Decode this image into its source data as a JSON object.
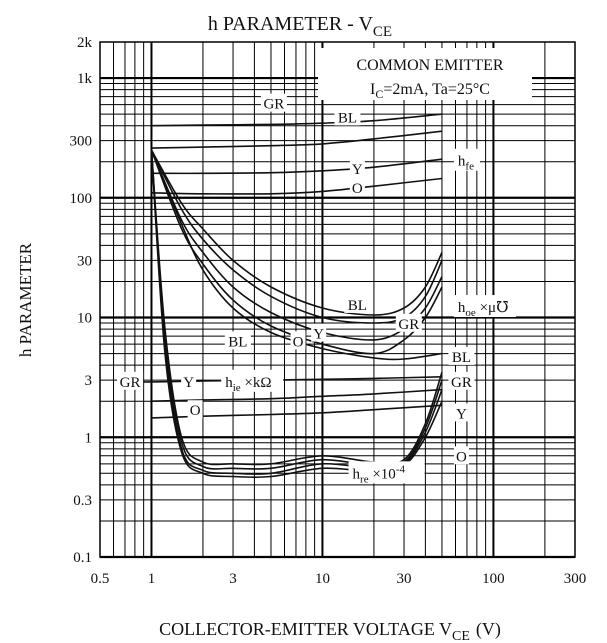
{
  "chart_data": {
    "type": "line",
    "title": "h PARAMETER - V",
    "title_sub": "CE",
    "xlabel": "COLLECTOR-EMITTER VOLTAGE V",
    "xlabel_sub": "CE",
    "xlabel_unit": "(V)",
    "ylabel": "h PARAMETER",
    "xscale": "log",
    "yscale": "log",
    "xlim": [
      0.5,
      300
    ],
    "ylim": [
      0.1,
      2000
    ],
    "grid": true,
    "xticks": [
      {
        "v": 0.5,
        "label": "0.5"
      },
      {
        "v": 1,
        "label": "1"
      },
      {
        "v": 3,
        "label": "3"
      },
      {
        "v": 10,
        "label": "10"
      },
      {
        "v": 30,
        "label": "30"
      },
      {
        "v": 100,
        "label": "100"
      },
      {
        "v": 300,
        "label": "300"
      }
    ],
    "yticks": [
      {
        "v": 2000,
        "label": "2k"
      },
      {
        "v": 1000,
        "label": "1k"
      },
      {
        "v": 300,
        "label": "300"
      },
      {
        "v": 100,
        "label": "100"
      },
      {
        "v": 30,
        "label": "30"
      },
      {
        "v": 10,
        "label": "10"
      },
      {
        "v": 3,
        "label": "3"
      },
      {
        "v": 1,
        "label": "1"
      },
      {
        "v": 0.3,
        "label": "0.3"
      },
      {
        "v": 0.1,
        "label": "0.1"
      }
    ],
    "conditions": {
      "line1": "COMMON EMITTER",
      "line2_pre": "I",
      "line2_sub": "C",
      "line2_post": "=2mA, Ta=25°C"
    },
    "series": [
      {
        "group": "hfe",
        "name": "GR",
        "x": [
          1,
          2,
          5,
          10,
          20,
          50
        ],
        "y": [
          400,
          405,
          410,
          420,
          440,
          500
        ]
      },
      {
        "group": "hfe",
        "name": "BL",
        "x": [
          1,
          2,
          5,
          10,
          20,
          50
        ],
        "y": [
          260,
          265,
          272,
          282,
          310,
          360
        ]
      },
      {
        "group": "hfe",
        "name": "Y",
        "x": [
          1,
          2,
          5,
          10,
          20,
          50
        ],
        "y": [
          160,
          160,
          162,
          168,
          180,
          210
        ]
      },
      {
        "group": "hfe",
        "name": "O",
        "x": [
          1,
          2,
          5,
          10,
          20,
          50
        ],
        "y": [
          110,
          108,
          108,
          113,
          125,
          145
        ]
      },
      {
        "group": "hoe",
        "name": "GR",
        "x": [
          1,
          1.5,
          2,
          3,
          5,
          10,
          20,
          30,
          40,
          50
        ],
        "y": [
          250,
          80,
          45,
          25,
          15,
          10,
          9,
          10,
          15,
          30
        ]
      },
      {
        "group": "hoe",
        "name": "BL",
        "x": [
          1,
          1.5,
          2,
          3,
          5,
          10,
          20,
          30,
          40,
          50
        ],
        "y": [
          250,
          90,
          55,
          30,
          18,
          12,
          10.5,
          12,
          18,
          35
        ]
      },
      {
        "group": "hoe",
        "name": "Y",
        "x": [
          1,
          1.5,
          2,
          3,
          5,
          10,
          20,
          30,
          40,
          50
        ],
        "y": [
          250,
          65,
          35,
          18,
          11,
          7.5,
          6.5,
          8,
          12,
          22
        ]
      },
      {
        "group": "hoe",
        "name": "O",
        "x": [
          1,
          1.5,
          2,
          3,
          5,
          10,
          20,
          30,
          40,
          50
        ],
        "y": [
          250,
          55,
          28,
          14,
          8.5,
          6,
          5,
          6.5,
          10,
          18
        ]
      },
      {
        "group": "hie",
        "name": "BL",
        "x": [
          1,
          1.5,
          2,
          3,
          5,
          10,
          20,
          30,
          50
        ],
        "y": [
          250,
          60,
          25,
          12,
          7.5,
          5.5,
          4.6,
          4.5,
          5
        ]
      },
      {
        "group": "hie",
        "name": "GR",
        "x": [
          0.8,
          1,
          2,
          5,
          10,
          20,
          50
        ],
        "y": [
          2.9,
          2.9,
          2.95,
          3.0,
          3.05,
          3.1,
          3.2
        ]
      },
      {
        "group": "hie",
        "name": "Y",
        "x": [
          1,
          2,
          5,
          10,
          20,
          50
        ],
        "y": [
          2.0,
          2.05,
          2.1,
          2.2,
          2.3,
          2.5
        ]
      },
      {
        "group": "hie",
        "name": "O",
        "x": [
          1,
          2,
          5,
          10,
          20,
          50
        ],
        "y": [
          1.45,
          1.5,
          1.55,
          1.6,
          1.7,
          1.85
        ]
      },
      {
        "group": "hre",
        "name": "BL",
        "x": [
          1,
          1.2,
          1.5,
          2,
          3,
          5,
          10,
          20,
          30,
          40,
          50
        ],
        "y": [
          250,
          8,
          1.0,
          0.62,
          0.6,
          0.6,
          0.7,
          0.62,
          0.65,
          1.3,
          3.5
        ]
      },
      {
        "group": "hre",
        "name": "GR",
        "x": [
          1,
          1.2,
          1.5,
          2,
          3,
          5,
          10,
          20,
          30,
          40,
          50
        ],
        "y": [
          250,
          7,
          0.9,
          0.57,
          0.55,
          0.55,
          0.65,
          0.58,
          0.62,
          1.2,
          3.0
        ]
      },
      {
        "group": "hre",
        "name": "Y",
        "x": [
          1,
          1.2,
          1.5,
          2,
          3,
          5,
          10,
          20,
          30,
          40,
          50
        ],
        "y": [
          250,
          6,
          0.8,
          0.53,
          0.5,
          0.5,
          0.6,
          0.55,
          0.6,
          1.1,
          2.5
        ]
      },
      {
        "group": "hre",
        "name": "O",
        "x": [
          1,
          1.2,
          1.5,
          2,
          3,
          5,
          10,
          20,
          30,
          40,
          50
        ],
        "y": [
          250,
          5,
          0.75,
          0.5,
          0.47,
          0.47,
          0.55,
          0.52,
          0.58,
          1.0,
          2.0
        ]
      }
    ],
    "labels": [
      {
        "text": "GR",
        "x": 5.2,
        "y": 600
      },
      {
        "text": "BL",
        "x": 14,
        "y": 460
      },
      {
        "text": "Y",
        "x": 16,
        "y": 170
      },
      {
        "text": "O",
        "x": 16,
        "y": 118
      },
      {
        "text": "BL",
        "x": 16,
        "y": 12.5
      },
      {
        "text": "GR",
        "x": 32,
        "y": 8.7
      },
      {
        "text": "O",
        "x": 7.2,
        "y": 6.2
      },
      {
        "text": "Y",
        "x": 9.5,
        "y": 7.2
      },
      {
        "text": "BL",
        "x": 3.2,
        "y": 6.2
      },
      {
        "text": "GR",
        "x": 0.75,
        "y": 2.85
      },
      {
        "text": "Y",
        "x": 1.65,
        "y": 2.85
      },
      {
        "text": "O",
        "x": 1.8,
        "y": 1.65
      },
      {
        "text": "BL",
        "x": 65,
        "y": 4.6
      },
      {
        "text": "GR",
        "x": 65,
        "y": 2.85
      },
      {
        "text": "Y",
        "x": 65,
        "y": 1.55
      },
      {
        "text": "O",
        "x": 65,
        "y": 0.68
      }
    ],
    "param_labels": [
      {
        "id": "hfe",
        "main": "h",
        "sub": "fe",
        "suffix": "",
        "x": 62,
        "y": 200
      },
      {
        "id": "hoe",
        "main": "h",
        "sub": "oe",
        "suffix": " ×μ℧",
        "x": 62,
        "y": 12
      },
      {
        "id": "hie",
        "main": "h",
        "sub": "ie",
        "suffix": " ×kΩ",
        "x": 2.7,
        "y": 2.85
      },
      {
        "id": "hre",
        "main": "h",
        "sub": "re",
        "suffix": " ×10",
        "sup": "-4",
        "x": 15,
        "y": 0.49
      }
    ]
  }
}
